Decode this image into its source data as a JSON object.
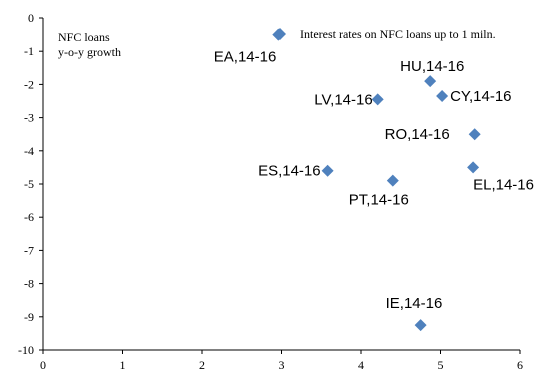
{
  "chart_data": {
    "type": "scatter",
    "title": "",
    "ylabel_lines": [
      "NFC loans",
      "y-o-y growth"
    ],
    "xlabel": "",
    "xlim": [
      0,
      6
    ],
    "ylim": [
      -10,
      0
    ],
    "xticks": [
      0,
      1,
      2,
      3,
      4,
      5,
      6
    ],
    "yticks": [
      0,
      -1,
      -2,
      -3,
      -4,
      -5,
      -6,
      -7,
      -8,
      -9,
      -10
    ],
    "grid": false,
    "legend_position": "top-right",
    "series": [
      {
        "name": "Interest rates on NFC loans up to 1 miln.",
        "color": "#4F81BD",
        "marker": "diamond",
        "points": [
          {
            "label": "EA,14-16",
            "x": 2.96,
            "y": -0.5
          },
          {
            "label": "HU,14-16",
            "x": 4.87,
            "y": -1.9
          },
          {
            "label": "LV,14-16",
            "x": 4.21,
            "y": -2.45
          },
          {
            "label": "CY,14-16",
            "x": 5.02,
            "y": -2.35
          },
          {
            "label": "RO,14-16",
            "x": 5.43,
            "y": -3.5
          },
          {
            "label": "ES,14-16",
            "x": 3.58,
            "y": -4.6
          },
          {
            "label": "EL,14-16",
            "x": 5.41,
            "y": -4.5
          },
          {
            "label": "PT,14-16",
            "x": 4.4,
            "y": -4.9
          },
          {
            "label": "IE,14-16",
            "x": 4.75,
            "y": -9.25
          }
        ]
      }
    ]
  }
}
